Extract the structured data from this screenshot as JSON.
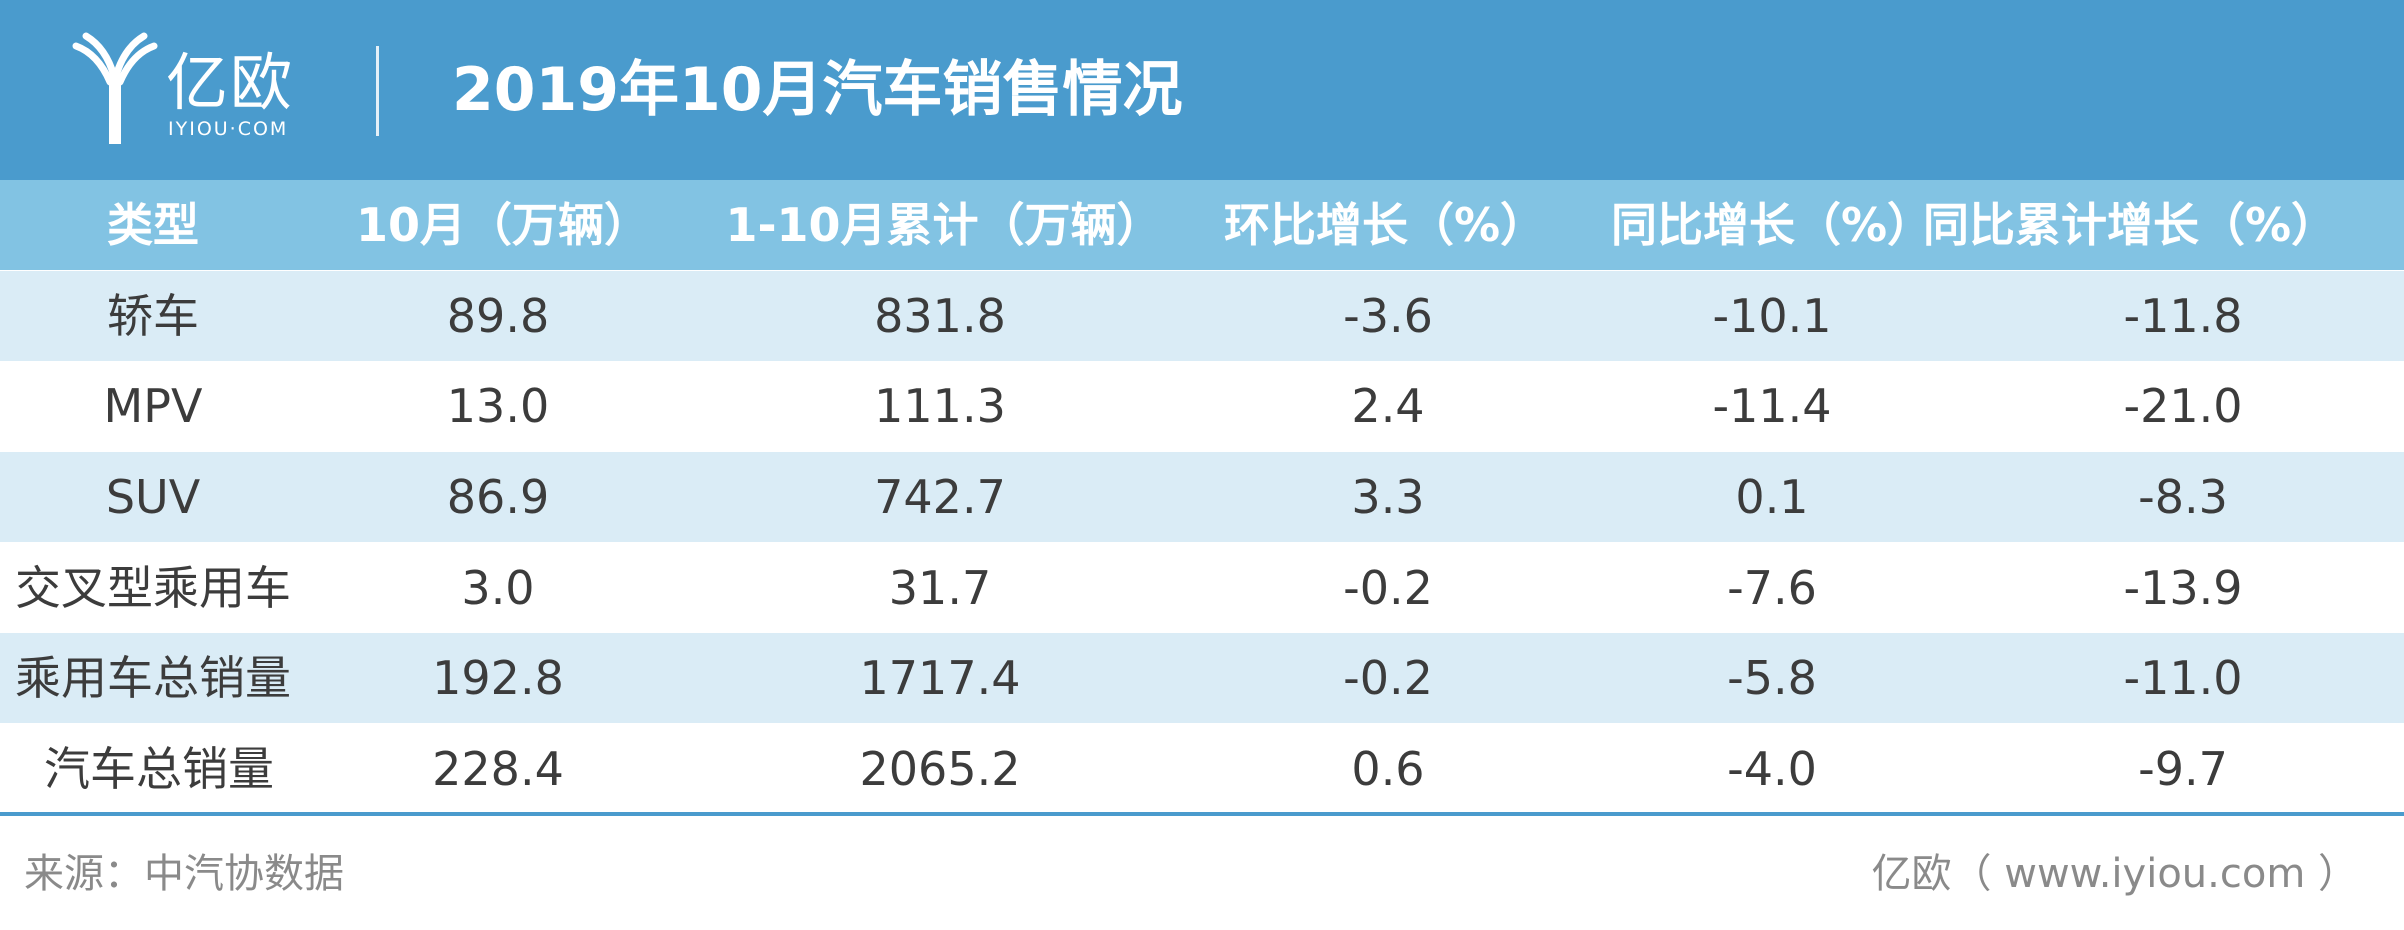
{
  "header": {
    "logo_cn": "亿欧",
    "logo_en": "IYIOU·COM",
    "title": "2019年10月汽车销售情况"
  },
  "chart_data": {
    "type": "table",
    "title": "2019年10月汽车销售情况",
    "columns": [
      "类型",
      "10月（万辆）",
      "1-10月累计（万辆）",
      "环比增长（%）",
      "同比增长（%）",
      "同比累计增长（%）"
    ],
    "rows": [
      [
        "轿车",
        "89.8",
        "831.8",
        "-3.6",
        "-10.1",
        "-11.8"
      ],
      [
        "MPV",
        "13.0",
        "111.3",
        "2.4",
        "-11.4",
        "-21.0"
      ],
      [
        "SUV",
        "86.9",
        "742.7",
        "3.3",
        "0.1",
        "-8.3"
      ],
      [
        "交叉型乘用车",
        "3.0",
        "31.7",
        "-0.2",
        "-7.6",
        "-13.9"
      ],
      [
        "乘用车总销量",
        "192.8",
        "1717.4",
        "-0.2",
        "-5.8",
        "-11.0"
      ],
      [
        "汽车总销量",
        "228.4",
        "2065.2",
        "0.6",
        "-4.0",
        "-9.7"
      ]
    ]
  },
  "footer": {
    "source": "来源：中汽协数据",
    "credit": "亿欧（ www.iyiou.com ）"
  },
  "colors": {
    "banner": "#4a9bcd",
    "header_row": "#82c3e3",
    "stripe": "#daecf6",
    "text": "#3c3c3c",
    "footer_text": "#8a8a8a"
  }
}
